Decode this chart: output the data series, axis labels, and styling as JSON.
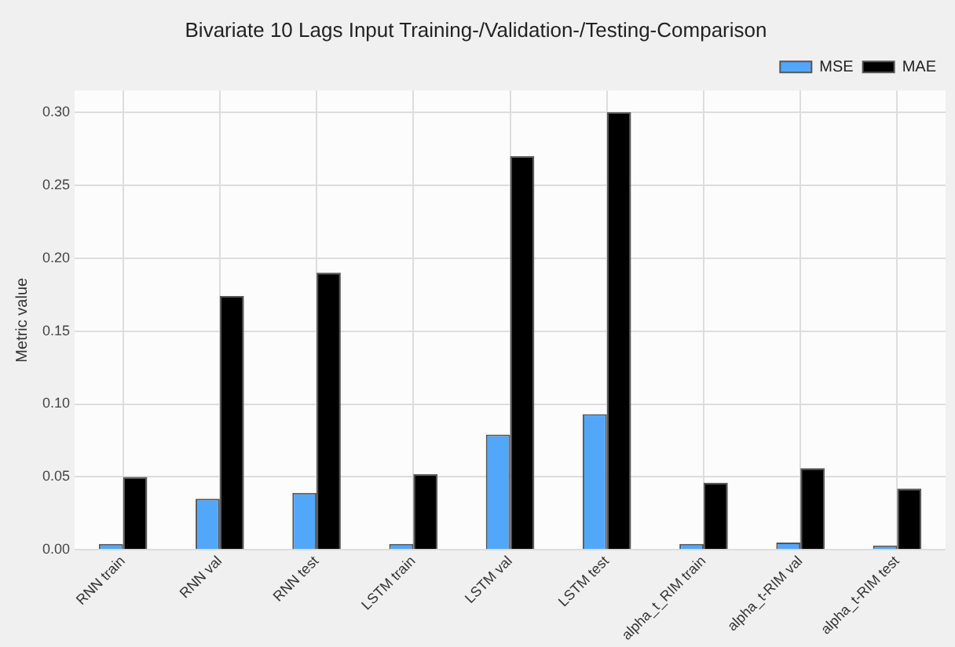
{
  "chart_data": {
    "type": "bar",
    "title": "Bivariate 10 Lags Input Training-/Validation-/Testing-Comparison",
    "ylabel": "Metric value",
    "categories": [
      "RNN train",
      "RNN val",
      "RNN test",
      "LSTM train",
      "LSTM val",
      "LSTM test",
      "alpha_t_RIM train",
      "alpha_t-RIM val",
      "alpha_t-RIM test"
    ],
    "series": [
      {
        "name": "MSE",
        "color": "#52a7f9",
        "values": [
          0.004,
          0.035,
          0.039,
          0.004,
          0.079,
          0.093,
          0.004,
          0.005,
          0.003
        ]
      },
      {
        "name": "MAE",
        "color": "#000000",
        "values": [
          0.05,
          0.174,
          0.19,
          0.052,
          0.27,
          0.3,
          0.046,
          0.056,
          0.042
        ]
      }
    ],
    "ylim": [
      0,
      0.315
    ],
    "yticks": [
      {
        "value": 0,
        "label": "0.00"
      },
      0.05,
      {
        "value": 0.1,
        "label": "0.10"
      },
      0.15,
      {
        "value": 0.2,
        "label": "0.20"
      },
      0.25,
      {
        "value": 0.3,
        "label": "0.30"
      }
    ],
    "grid": true,
    "legend": "top right"
  }
}
